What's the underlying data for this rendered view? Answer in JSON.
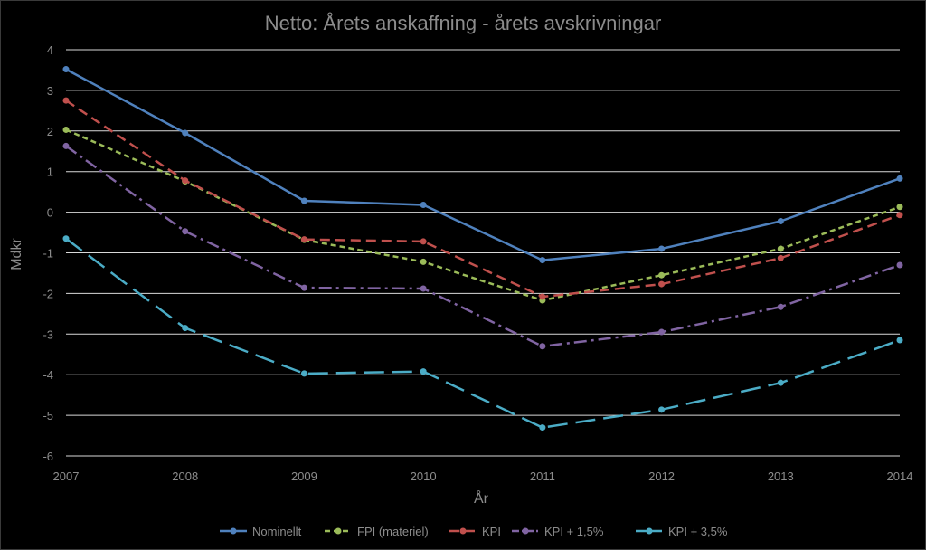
{
  "chart_data": {
    "type": "line",
    "title": "Netto: Årets anskaffning - årets avskrivningar",
    "xlabel": "År",
    "ylabel": "Mdkr",
    "x": [
      "2007",
      "2008",
      "2009",
      "2010",
      "2011",
      "2012",
      "2013",
      "2014"
    ],
    "ylim": [
      -6,
      4
    ],
    "yticks": [
      "-6",
      "-5",
      "-4",
      "-3",
      "-2",
      "-1",
      "0",
      "1",
      "2",
      "3",
      "4"
    ],
    "grid": true,
    "legend_position": "bottom",
    "series": [
      {
        "name": "Nominellt",
        "values": [
          3.52,
          1.95,
          0.28,
          0.18,
          -1.18,
          -0.9,
          -0.22,
          0.83
        ],
        "color": "#4f81bd",
        "dash": "solid"
      },
      {
        "name": "FPI (materiel)",
        "values": [
          2.03,
          0.76,
          -0.68,
          -1.22,
          -2.17,
          -1.55,
          -0.9,
          0.13
        ],
        "color": "#9bbb59",
        "dash": "short-dash"
      },
      {
        "name": "KPI",
        "values": [
          2.75,
          0.78,
          -0.67,
          -0.72,
          -2.08,
          -1.77,
          -1.13,
          -0.07
        ],
        "color": "#c0504d",
        "dash": "dash"
      },
      {
        "name": "KPI + 1,5%",
        "values": [
          1.63,
          -0.47,
          -1.86,
          -1.88,
          -3.3,
          -2.95,
          -2.33,
          -1.3
        ],
        "color": "#8064a2",
        "dash": "dash-dot"
      },
      {
        "name": "KPI + 3,5%",
        "values": [
          -0.65,
          -2.85,
          -3.97,
          -3.92,
          -5.3,
          -4.86,
          -4.2,
          -3.15
        ],
        "color": "#4bacc6",
        "dash": "long-dash"
      }
    ]
  }
}
